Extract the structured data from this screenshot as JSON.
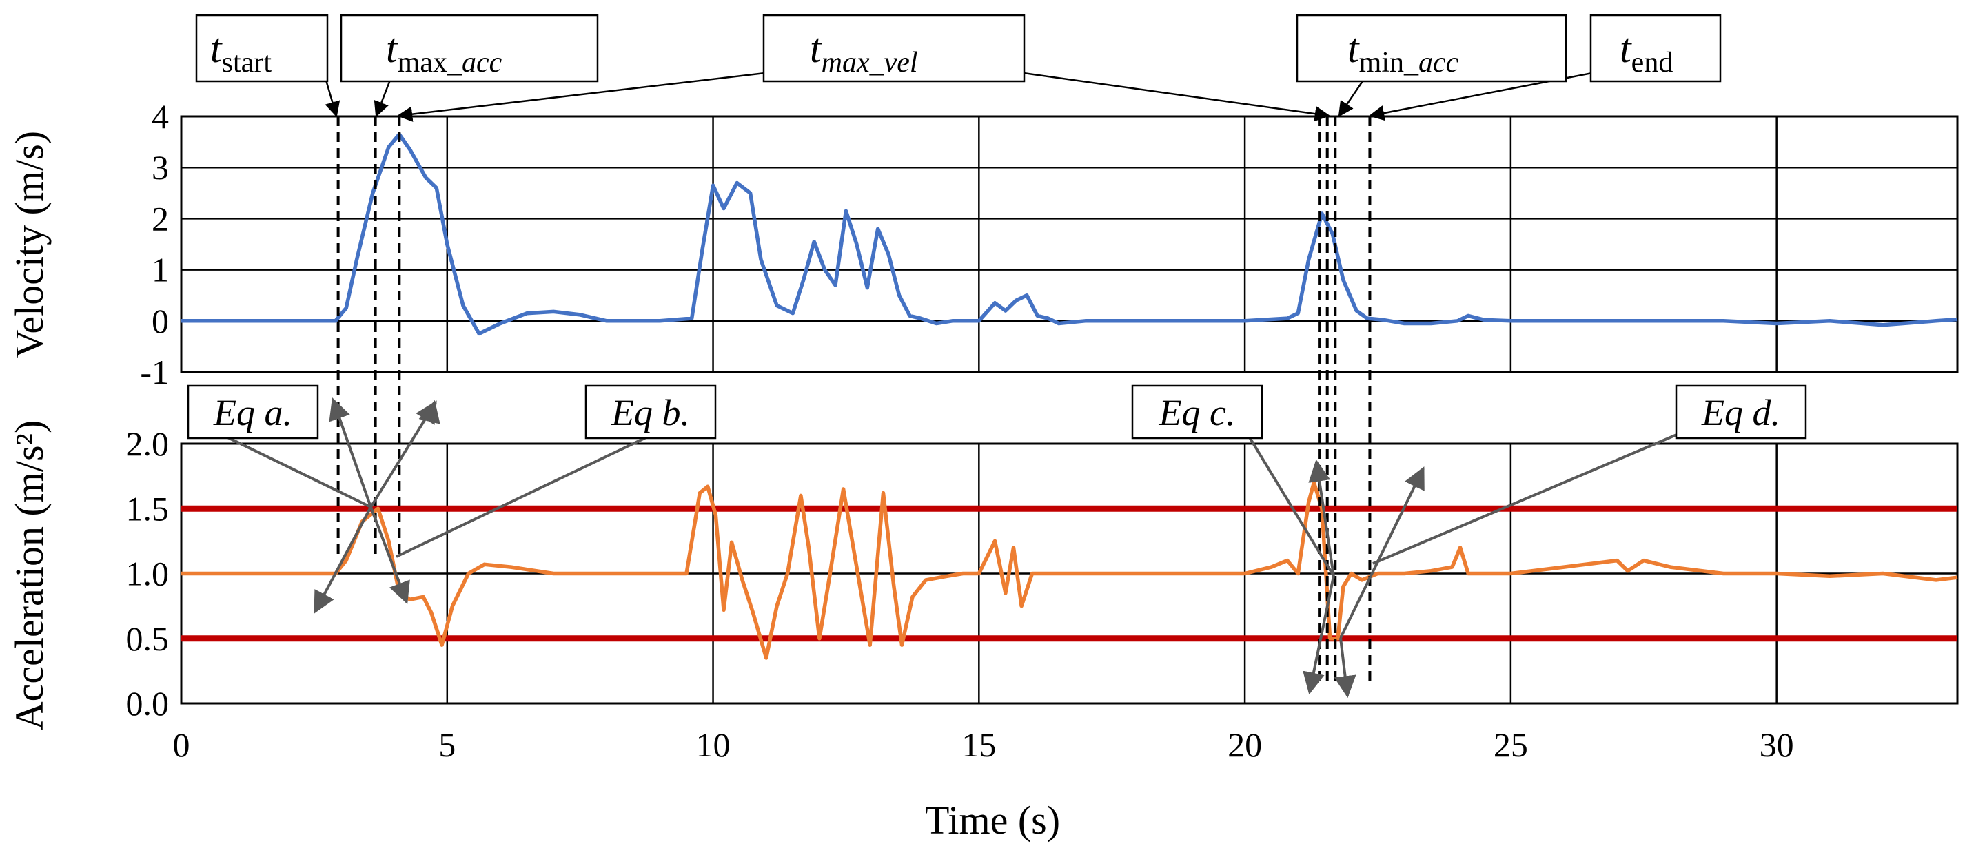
{
  "chart_data": [
    {
      "type": "line",
      "name": "velocity",
      "ylabel": "Velocity (m/s)",
      "ylim": [
        -1,
        4
      ],
      "yticks": [
        "4",
        "3",
        "2",
        "1",
        "0",
        "-1"
      ],
      "ytick_values": [
        4,
        3,
        2,
        1,
        0,
        -1
      ],
      "color": "#4472C4",
      "series": [
        {
          "name": "Velocity",
          "x": [
            0,
            1,
            2,
            2.9,
            3.1,
            3.3,
            3.6,
            3.9,
            4.1,
            4.3,
            4.6,
            4.8,
            5.0,
            5.3,
            5.6,
            6.0,
            6.5,
            7.0,
            7.5,
            8.0,
            9.0,
            9.6,
            9.8,
            10.0,
            10.2,
            10.45,
            10.7,
            10.9,
            11.2,
            11.5,
            11.7,
            11.9,
            12.1,
            12.3,
            12.5,
            12.7,
            12.9,
            13.1,
            13.3,
            13.5,
            13.7,
            13.9,
            14.2,
            14.5,
            15.0,
            15.3,
            15.5,
            15.7,
            15.9,
            16.1,
            16.3,
            16.5,
            17,
            18,
            19,
            20,
            20.8,
            21.0,
            21.2,
            21.45,
            21.65,
            21.85,
            22.1,
            22.3,
            22.6,
            23,
            23.5,
            24,
            24.2,
            24.5,
            25,
            26,
            27,
            28,
            29,
            30,
            31,
            32,
            33,
            33.4
          ],
          "values": [
            0,
            0,
            0,
            0,
            0.25,
            1.2,
            2.5,
            3.4,
            3.65,
            3.35,
            2.8,
            2.6,
            1.5,
            0.3,
            -0.25,
            -0.05,
            0.15,
            0.18,
            0.12,
            0,
            0,
            0.05,
            1.4,
            2.65,
            2.2,
            2.7,
            2.5,
            1.2,
            0.3,
            0.15,
            0.8,
            1.55,
            1.0,
            0.7,
            2.15,
            1.5,
            0.65,
            1.8,
            1.3,
            0.5,
            0.1,
            0.05,
            -0.05,
            0,
            0,
            0.35,
            0.2,
            0.4,
            0.5,
            0.1,
            0.05,
            -0.05,
            0,
            0,
            0,
            0,
            0.05,
            0.15,
            1.2,
            2.1,
            1.7,
            0.8,
            0.2,
            0.05,
            0.02,
            -0.05,
            -0.05,
            0,
            0.1,
            0.02,
            0,
            0,
            0,
            0,
            0,
            -0.05,
            0,
            -0.08,
            0,
            0.03
          ]
        }
      ]
    },
    {
      "type": "line",
      "name": "acceleration",
      "ylabel": "Acceleration (m/s²)",
      "ylim": [
        0,
        2
      ],
      "yticks": [
        "2.0",
        "1.5",
        "1.0",
        "0.5",
        "0.0"
      ],
      "ytick_values": [
        2.0,
        1.5,
        1.0,
        0.5,
        0.0
      ],
      "color": "#ED7D31",
      "thresholds": [
        1.5,
        0.5
      ],
      "threshold_color": "#C00000",
      "xlabel": "Time (s)",
      "xlim": [
        0,
        33.4
      ],
      "xticks": [
        "0",
        "5",
        "10",
        "15",
        "20",
        "25",
        "30"
      ],
      "xtick_values": [
        0,
        5,
        10,
        15,
        20,
        25,
        30
      ],
      "series": [
        {
          "name": "Acceleration",
          "x": [
            0,
            1,
            2,
            2.9,
            3.1,
            3.4,
            3.7,
            3.9,
            4.1,
            4.3,
            4.55,
            4.7,
            4.9,
            5.1,
            5.4,
            5.7,
            6.2,
            7,
            8,
            9,
            9.5,
            9.75,
            9.9,
            10.05,
            10.2,
            10.35,
            10.55,
            10.75,
            11.0,
            11.2,
            11.4,
            11.65,
            11.8,
            12.0,
            12.2,
            12.45,
            12.7,
            12.95,
            13.2,
            13.4,
            13.55,
            13.75,
            14.0,
            14.4,
            14.7,
            15.0,
            15.3,
            15.5,
            15.65,
            15.8,
            16.0,
            16.2,
            16.4,
            17,
            18,
            19,
            20,
            20.5,
            20.8,
            21.0,
            21.2,
            21.3,
            21.45,
            21.6,
            21.75,
            21.85,
            22.0,
            22.2,
            22.5,
            23,
            23.5,
            23.9,
            24.05,
            24.2,
            24.5,
            25,
            26,
            27,
            27.2,
            27.5,
            28,
            29,
            30,
            31,
            32,
            33,
            33.4
          ],
          "values": [
            1.0,
            1.0,
            1.0,
            1.0,
            1.1,
            1.4,
            1.5,
            1.25,
            0.85,
            0.8,
            0.82,
            0.7,
            0.45,
            0.75,
            1.0,
            1.07,
            1.05,
            1.0,
            1.0,
            1.0,
            1.0,
            1.62,
            1.67,
            1.45,
            0.72,
            1.24,
            0.95,
            0.7,
            0.35,
            0.75,
            1.0,
            1.6,
            1.2,
            0.5,
            1.0,
            1.65,
            1.05,
            0.45,
            1.62,
            0.9,
            0.45,
            0.82,
            0.95,
            0.98,
            1.0,
            1.0,
            1.25,
            0.85,
            1.2,
            0.75,
            1.0,
            1.0,
            1.0,
            1.0,
            1.0,
            1.0,
            1.0,
            1.05,
            1.1,
            1.0,
            1.55,
            1.7,
            1.5,
            0.5,
            0.5,
            0.9,
            1.0,
            0.95,
            1.0,
            1.0,
            1.02,
            1.05,
            1.2,
            1.0,
            1.0,
            1.0,
            1.05,
            1.1,
            1.02,
            1.1,
            1.05,
            1.0,
            1.0,
            0.98,
            1.0,
            0.95,
            0.97
          ]
        }
      ]
    }
  ],
  "event_labels": [
    {
      "id": "t_start",
      "base": "t",
      "sub": "start",
      "italic_sub": false,
      "time": 2.95
    },
    {
      "id": "t_max_acc",
      "base": "t",
      "sub": "max",
      "sub2": "_acc",
      "italic_sub": false,
      "time": 3.65
    },
    {
      "id": "t_max_vel",
      "base": "t",
      "sub": "max_vel",
      "italic_sub": true,
      "time": 4.1
    },
    {
      "id": "t_max_vel_2",
      "time": 21.4
    },
    {
      "id": "t_max_vel_3",
      "time": 21.55
    },
    {
      "id": "t_min_acc",
      "base": "t",
      "sub": "min",
      "sub2": "_acc",
      "italic_sub": false,
      "time": 21.7
    },
    {
      "id": "t_end",
      "base": "t",
      "sub": "end",
      "italic_sub": false,
      "time": 22.35
    }
  ],
  "equation_labels": [
    "Eq a.",
    "Eq b.",
    "Eq c.",
    "Eq d."
  ]
}
